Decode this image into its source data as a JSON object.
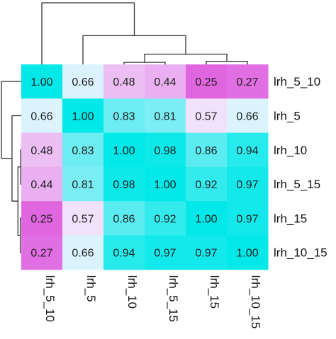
{
  "chart_data": {
    "type": "heatmap",
    "title": "",
    "xlabel": "",
    "ylabel": "",
    "labels": [
      "lrh_5_10",
      "lrh_5",
      "lrh_10",
      "lrh_5_15",
      "lrh_15",
      "lrh_10_15"
    ],
    "values": [
      [
        1.0,
        0.66,
        0.48,
        0.44,
        0.25,
        0.27
      ],
      [
        0.66,
        1.0,
        0.83,
        0.81,
        0.57,
        0.66
      ],
      [
        0.48,
        0.83,
        1.0,
        0.98,
        0.86,
        0.94
      ],
      [
        0.44,
        0.81,
        0.98,
        1.0,
        0.92,
        0.97
      ],
      [
        0.25,
        0.57,
        0.86,
        0.92,
        1.0,
        0.97
      ],
      [
        0.27,
        0.66,
        0.94,
        0.97,
        0.97,
        1.0
      ]
    ],
    "cell_labels": [
      [
        "1.00",
        "0.66",
        "0.48",
        "0.44",
        "0.25",
        "0.27"
      ],
      [
        "0.66",
        "1.00",
        "0.83",
        "0.81",
        "0.57",
        "0.66"
      ],
      [
        "0.48",
        "0.83",
        "1.00",
        "0.98",
        "0.86",
        "0.94"
      ],
      [
        "0.44",
        "0.81",
        "0.98",
        "1.00",
        "0.92",
        "0.97"
      ],
      [
        "0.25",
        "0.57",
        "0.86",
        "0.92",
        "1.00",
        "0.97"
      ],
      [
        "0.27",
        "0.66",
        "0.94",
        "0.97",
        "0.97",
        "1.00"
      ]
    ],
    "color_scale": {
      "low": "#e066e0",
      "mid": "#f4f4ff",
      "high": "#00e8e8",
      "domain": [
        0.25,
        0.62,
        1.0
      ]
    },
    "dendrogram": {
      "merges": [
        [
          2,
          3,
          0.02
        ],
        [
          4,
          5,
          0.03
        ],
        [
          6,
          7,
          0.1
        ],
        [
          1,
          8,
          0.28
        ],
        [
          0,
          9,
          0.6
        ]
      ]
    },
    "grid": false,
    "legend": "none"
  }
}
